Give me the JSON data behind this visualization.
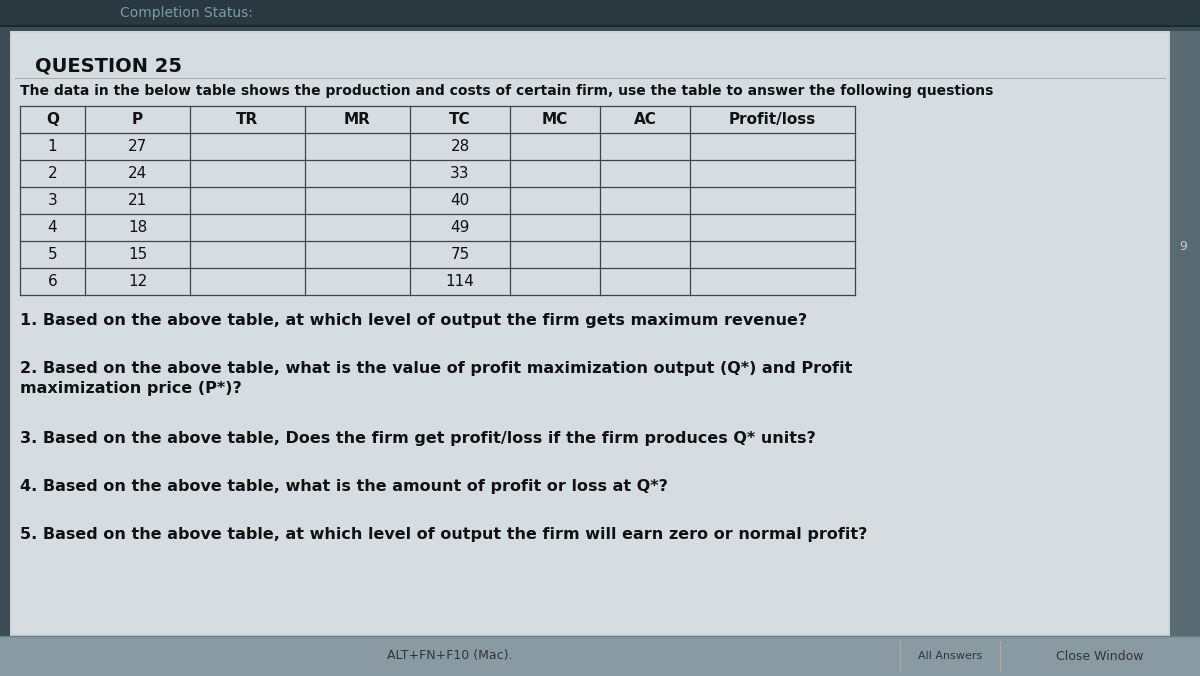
{
  "title_header": "Completion Status:",
  "question_number": "QUESTION 25",
  "intro_text": "The data in the below table shows the production and costs of certain firm, use the table to answer the following questions",
  "table_headers": [
    "Q",
    "P",
    "TR",
    "MR",
    "TC",
    "MC",
    "AC",
    "Profit/loss"
  ],
  "table_data": [
    [
      "1",
      "27",
      "",
      "",
      "28",
      "",
      "",
      ""
    ],
    [
      "2",
      "24",
      "",
      "",
      "33",
      "",
      "",
      ""
    ],
    [
      "3",
      "21",
      "",
      "",
      "40",
      "",
      "",
      ""
    ],
    [
      "4",
      "18",
      "",
      "",
      "49",
      "",
      "",
      ""
    ],
    [
      "5",
      "15",
      "",
      "",
      "75",
      "",
      "",
      ""
    ],
    [
      "6",
      "12",
      "",
      "",
      "114",
      "",
      "",
      ""
    ]
  ],
  "questions": [
    "1. Based on the above table, at which level of output the firm gets maximum revenue?",
    "2. Based on the above table, what is the value of profit maximization output (Q*) and Profit\n   maximization price (P*)?",
    "3. Based on the above table, Does the firm get profit/loss if the firm produces Q* units?",
    "4. Based on the above table, what is the amount of profit or loss at Q*?",
    "5. Based on the above table, at which level of output the firm will earn zero or normal profit?"
  ],
  "footer_left": "ALT+FN+F10 (Mac).",
  "footer_center_label": "All Answers",
  "footer_right": "Close Window",
  "bg_dark": "#3a4a52",
  "bg_main": "#5a6a72",
  "bg_content": "#8a9aa2",
  "table_bg": "#c8d4d8",
  "table_line_color": "#444444",
  "text_dark": "#111111",
  "text_light": "#dddddd",
  "text_header": "#b0c0c8",
  "side_label": "9",
  "table_font_size": 11,
  "q_font_size": 11.5,
  "intro_font_size": 10,
  "header_font_size": 14
}
